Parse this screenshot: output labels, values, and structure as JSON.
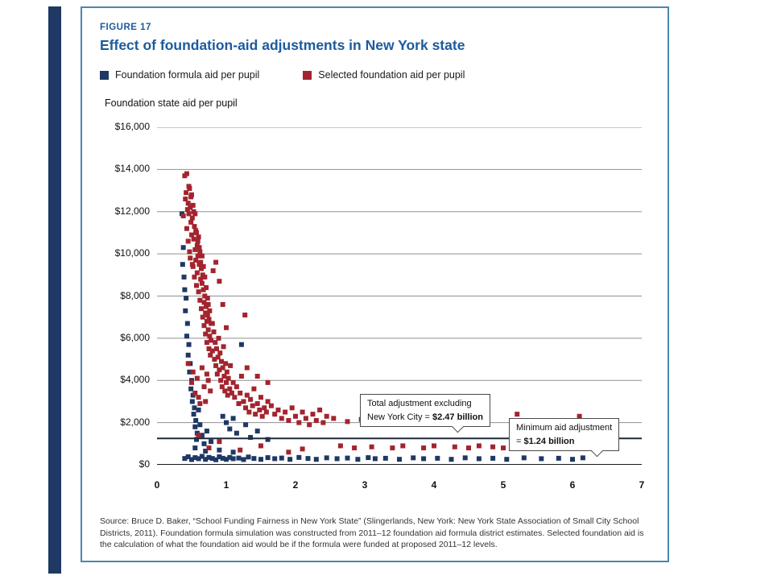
{
  "figure": {
    "eyebrow": "FIGURE 17",
    "title": "Effect of foundation-aid adjustments in New York state",
    "legend": [
      {
        "label": "Foundation formula aid per pupil",
        "color": "#1f3864"
      },
      {
        "label": "Selected foundation aid per pupil",
        "color": "#a3242e"
      }
    ],
    "axis_title": "Foundation state aid per pupil",
    "source": "Source: Bruce D. Baker, “School Funding Fairness in New York State” (Slingerlands, New York: New York State Association of Small City School Districts, 2011). Foundation formula simulation was constructed from 2011–12 foundation aid formula district estimates. Selected foundation aid is the calculation of what the foundation aid would be if the formula were funded at proposed 2011–12 levels.",
    "border_color": "#4b86ae",
    "accent_blue": "#1b5b9e"
  },
  "chart_data": {
    "type": "scatter",
    "title": "Effect of foundation-aid adjustments in New York state",
    "ylabel": "Foundation state aid per pupil",
    "xlabel": "",
    "xlim": [
      0,
      7
    ],
    "ylim": [
      0,
      16000
    ],
    "grid": "horizontal",
    "legend_position": "top",
    "yticks": [
      {
        "value": 0,
        "label": "$0"
      },
      {
        "value": 2000,
        "label": "$2,000"
      },
      {
        "value": 4000,
        "label": "$4,000"
      },
      {
        "value": 6000,
        "label": "$6,000"
      },
      {
        "value": 8000,
        "label": "$8,000"
      },
      {
        "value": 10000,
        "label": "$10,000"
      },
      {
        "value": 12000,
        "label": "$12,000"
      },
      {
        "value": 14000,
        "label": "$14,000"
      },
      {
        "value": 16000,
        "label": "$16,000"
      }
    ],
    "xticks": [
      0,
      1,
      2,
      3,
      4,
      5,
      6,
      7
    ],
    "series": [
      {
        "name": "Foundation formula aid per pupil",
        "color": "#1f3864",
        "points": [
          [
            0.36,
            11900
          ],
          [
            0.38,
            10300
          ],
          [
            0.37,
            9500
          ],
          [
            0.4,
            8300
          ],
          [
            0.39,
            8900
          ],
          [
            0.42,
            7900
          ],
          [
            0.41,
            7300
          ],
          [
            0.44,
            6700
          ],
          [
            0.43,
            6100
          ],
          [
            0.46,
            5700
          ],
          [
            0.45,
            5200
          ],
          [
            0.48,
            4800
          ],
          [
            0.47,
            4400
          ],
          [
            0.5,
            4000
          ],
          [
            0.49,
            3600
          ],
          [
            0.52,
            3300
          ],
          [
            0.51,
            3000
          ],
          [
            0.54,
            2700
          ],
          [
            0.53,
            2400
          ],
          [
            0.56,
            2100
          ],
          [
            0.55,
            1800
          ],
          [
            0.58,
            1500
          ],
          [
            0.57,
            1200
          ],
          [
            0.6,
            2600
          ],
          [
            0.62,
            1900
          ],
          [
            0.65,
            1400
          ],
          [
            0.68,
            1000
          ],
          [
            0.72,
            1600
          ],
          [
            0.78,
            1100
          ],
          [
            0.95,
            2300
          ],
          [
            1.0,
            2000
          ],
          [
            1.05,
            1700
          ],
          [
            1.1,
            2200
          ],
          [
            1.15,
            1500
          ],
          [
            1.22,
            5700
          ],
          [
            1.28,
            1900
          ],
          [
            1.35,
            1300
          ],
          [
            1.45,
            1600
          ],
          [
            1.6,
            1200
          ],
          [
            0.55,
            800
          ],
          [
            0.7,
            650
          ],
          [
            0.9,
            700
          ],
          [
            1.1,
            600
          ],
          [
            0.4,
            300
          ],
          [
            0.45,
            380
          ],
          [
            0.5,
            250
          ],
          [
            0.55,
            340
          ],
          [
            0.6,
            290
          ],
          [
            0.65,
            400
          ],
          [
            0.7,
            260
          ],
          [
            0.75,
            350
          ],
          [
            0.8,
            300
          ],
          [
            0.85,
            240
          ],
          [
            0.9,
            380
          ],
          [
            0.95,
            310
          ],
          [
            1.0,
            260
          ],
          [
            1.05,
            350
          ],
          [
            1.1,
            290
          ],
          [
            1.18,
            320
          ],
          [
            1.25,
            250
          ],
          [
            1.32,
            370
          ],
          [
            1.4,
            300
          ],
          [
            1.5,
            260
          ],
          [
            1.6,
            340
          ],
          [
            1.7,
            290
          ],
          [
            1.8,
            320
          ],
          [
            1.92,
            260
          ],
          [
            2.05,
            350
          ],
          [
            2.18,
            300
          ],
          [
            2.3,
            260
          ],
          [
            2.45,
            330
          ],
          [
            2.6,
            290
          ],
          [
            2.75,
            320
          ],
          [
            2.9,
            260
          ],
          [
            3.05,
            340
          ],
          [
            3.15,
            290
          ],
          [
            3.3,
            310
          ],
          [
            3.5,
            260
          ],
          [
            3.7,
            330
          ],
          [
            3.85,
            290
          ],
          [
            4.05,
            310
          ],
          [
            4.25,
            260
          ],
          [
            4.45,
            330
          ],
          [
            4.65,
            290
          ],
          [
            4.85,
            310
          ],
          [
            5.05,
            260
          ],
          [
            5.3,
            330
          ],
          [
            5.55,
            290
          ],
          [
            5.8,
            310
          ],
          [
            6.0,
            260
          ],
          [
            6.15,
            330
          ]
        ]
      },
      {
        "name": "Selected foundation aid per pupil",
        "color": "#a3242e",
        "points": [
          [
            0.38,
            11800
          ],
          [
            0.4,
            13700
          ],
          [
            0.41,
            12600
          ],
          [
            0.42,
            12900
          ],
          [
            0.43,
            13800
          ],
          [
            0.43,
            11200
          ],
          [
            0.44,
            12100
          ],
          [
            0.45,
            12400
          ],
          [
            0.45,
            10600
          ],
          [
            0.46,
            11900
          ],
          [
            0.46,
            13200
          ],
          [
            0.47,
            13100
          ],
          [
            0.47,
            10100
          ],
          [
            0.48,
            12200
          ],
          [
            0.48,
            9800
          ],
          [
            0.49,
            11500
          ],
          [
            0.49,
            12700
          ],
          [
            0.5,
            12800
          ],
          [
            0.5,
            10900
          ],
          [
            0.51,
            11700
          ],
          [
            0.51,
            9500
          ],
          [
            0.52,
            12300
          ],
          [
            0.52,
            9400
          ],
          [
            0.53,
            10700
          ],
          [
            0.53,
            12000
          ],
          [
            0.54,
            11300
          ],
          [
            0.54,
            8900
          ],
          [
            0.55,
            11900
          ],
          [
            0.55,
            10200
          ],
          [
            0.56,
            9700
          ],
          [
            0.56,
            11100
          ],
          [
            0.57,
            11000
          ],
          [
            0.57,
            8500
          ],
          [
            0.58,
            10400
          ],
          [
            0.58,
            9100
          ],
          [
            0.59,
            9900
          ],
          [
            0.59,
            10600
          ],
          [
            0.6,
            10800
          ],
          [
            0.6,
            8200
          ],
          [
            0.61,
            9500
          ],
          [
            0.61,
            10300
          ],
          [
            0.62,
            10100
          ],
          [
            0.62,
            7800
          ],
          [
            0.63,
            8800
          ],
          [
            0.63,
            9600
          ],
          [
            0.64,
            9300
          ],
          [
            0.64,
            7400
          ],
          [
            0.65,
            8600
          ],
          [
            0.65,
            9900
          ],
          [
            0.66,
            9000
          ],
          [
            0.66,
            7000
          ],
          [
            0.67,
            8300
          ],
          [
            0.67,
            9400
          ],
          [
            0.68,
            7700
          ],
          [
            0.68,
            6600
          ],
          [
            0.69,
            8000
          ],
          [
            0.69,
            8900
          ],
          [
            0.7,
            7200
          ],
          [
            0.7,
            6200
          ],
          [
            0.71,
            7500
          ],
          [
            0.71,
            8400
          ],
          [
            0.72,
            6800
          ],
          [
            0.72,
            5800
          ],
          [
            0.73,
            7100
          ],
          [
            0.73,
            7900
          ],
          [
            0.74,
            6400
          ],
          [
            0.74,
            7600
          ],
          [
            0.75,
            5500
          ],
          [
            0.75,
            6900
          ],
          [
            0.76,
            6100
          ],
          [
            0.76,
            7300
          ],
          [
            0.77,
            5200
          ],
          [
            0.78,
            5900
          ],
          [
            0.78,
            6700
          ],
          [
            0.45,
            4800
          ],
          [
            0.5,
            3900
          ],
          [
            0.52,
            4400
          ],
          [
            0.55,
            3400
          ],
          [
            0.58,
            4100
          ],
          [
            0.6,
            3200
          ],
          [
            0.62,
            2900
          ],
          [
            0.65,
            4600
          ],
          [
            0.68,
            3700
          ],
          [
            0.7,
            3000
          ],
          [
            0.72,
            4300
          ],
          [
            0.74,
            4000
          ],
          [
            0.77,
            3500
          ],
          [
            0.8,
            6700
          ],
          [
            0.8,
            5400
          ],
          [
            0.81,
            9200
          ],
          [
            0.82,
            6300
          ],
          [
            0.83,
            5000
          ],
          [
            0.84,
            5800
          ],
          [
            0.85,
            9600
          ],
          [
            0.85,
            4700
          ],
          [
            0.86,
            5500
          ],
          [
            0.87,
            4300
          ],
          [
            0.88,
            5100
          ],
          [
            0.89,
            6000
          ],
          [
            0.9,
            8700
          ],
          [
            0.9,
            4500
          ],
          [
            0.91,
            5300
          ],
          [
            0.92,
            4000
          ],
          [
            0.93,
            4900
          ],
          [
            0.94,
            3700
          ],
          [
            0.95,
            7600
          ],
          [
            0.95,
            4600
          ],
          [
            0.96,
            5600
          ],
          [
            0.97,
            4200
          ],
          [
            0.98,
            3500
          ],
          [
            0.99,
            4800
          ],
          [
            1.0,
            6500
          ],
          [
            1.0,
            3900
          ],
          [
            1.01,
            4400
          ],
          [
            1.02,
            3300
          ],
          [
            1.03,
            4100
          ],
          [
            1.05,
            3600
          ],
          [
            1.06,
            4700
          ],
          [
            1.08,
            3400
          ],
          [
            1.1,
            3900
          ],
          [
            1.12,
            3200
          ],
          [
            1.15,
            3700
          ],
          [
            1.18,
            2900
          ],
          [
            1.2,
            3400
          ],
          [
            1.22,
            4200
          ],
          [
            1.25,
            3000
          ],
          [
            1.27,
            7100
          ],
          [
            1.28,
            2700
          ],
          [
            1.3,
            4600
          ],
          [
            1.3,
            3300
          ],
          [
            1.33,
            2500
          ],
          [
            1.35,
            3100
          ],
          [
            1.38,
            2800
          ],
          [
            1.4,
            3600
          ],
          [
            1.42,
            2400
          ],
          [
            1.45,
            4200
          ],
          [
            1.45,
            2900
          ],
          [
            1.48,
            2600
          ],
          [
            1.5,
            3200
          ],
          [
            1.52,
            2300
          ],
          [
            1.55,
            2700
          ],
          [
            1.58,
            2500
          ],
          [
            1.6,
            3900
          ],
          [
            1.6,
            3000
          ],
          [
            1.65,
            2800
          ],
          [
            1.7,
            2400
          ],
          [
            1.75,
            2600
          ],
          [
            1.8,
            2200
          ],
          [
            1.85,
            2500
          ],
          [
            1.9,
            2100
          ],
          [
            1.95,
            2700
          ],
          [
            2.0,
            2300
          ],
          [
            2.05,
            2000
          ],
          [
            2.1,
            2500
          ],
          [
            2.15,
            2200
          ],
          [
            2.2,
            1900
          ],
          [
            2.25,
            2400
          ],
          [
            2.3,
            2100
          ],
          [
            2.35,
            2600
          ],
          [
            2.4,
            2000
          ],
          [
            2.45,
            2300
          ],
          [
            0.6,
            1400
          ],
          [
            0.75,
            800
          ],
          [
            0.9,
            1100
          ],
          [
            1.2,
            700
          ],
          [
            1.5,
            900
          ],
          [
            1.9,
            600
          ],
          [
            2.1,
            750
          ],
          [
            2.55,
            2200
          ],
          [
            2.65,
            900
          ],
          [
            2.75,
            2050
          ],
          [
            2.85,
            800
          ],
          [
            2.95,
            2150
          ],
          [
            3.1,
            850
          ],
          [
            3.25,
            2250
          ],
          [
            3.4,
            800
          ],
          [
            3.55,
            900
          ],
          [
            3.7,
            2100
          ],
          [
            3.85,
            800
          ],
          [
            4.0,
            900
          ],
          [
            4.15,
            2350
          ],
          [
            4.3,
            850
          ],
          [
            4.5,
            800
          ],
          [
            4.65,
            900
          ],
          [
            4.85,
            850
          ],
          [
            5.0,
            800
          ],
          [
            5.2,
            2400
          ],
          [
            5.4,
            850
          ],
          [
            5.6,
            800
          ],
          [
            5.8,
            900
          ],
          [
            6.0,
            850
          ],
          [
            6.1,
            2300
          ],
          [
            6.2,
            800
          ]
        ]
      }
    ],
    "annotations": {
      "hline": {
        "y": 1250,
        "color": "#1f2a3c"
      },
      "callouts": [
        {
          "line1": "Total adjustment excluding",
          "line2_prefix": "New York City = ",
          "value": "$2.47 billion"
        },
        {
          "line1": "Minimum aid adjustment",
          "line2_prefix": "= ",
          "value": "$1.24 billion"
        }
      ]
    }
  }
}
